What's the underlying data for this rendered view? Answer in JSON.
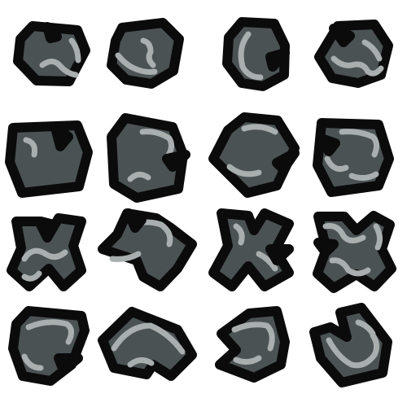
{
  "sprite_sheet": {
    "rows": 4,
    "columns": 4,
    "colors": {
      "background": "#ffffff",
      "outline": "#0b0b0b",
      "body": "#4b5254",
      "highlight": "#a9aeaf"
    },
    "rows_data": [
      {
        "row_name": "small-rocks",
        "tiles": [
          "rock-round-a",
          "rock-round-b",
          "rock-round-c",
          "rock-round-d"
        ]
      },
      {
        "row_name": "medium-rocks",
        "tiles": [
          "rock-hex-a",
          "rock-hex-b",
          "rock-hex-c",
          "rock-hex-d"
        ]
      },
      {
        "row_name": "cross-rocks",
        "tiles": [
          "rock-cross-a",
          "rock-cross-b",
          "rock-cross-c",
          "rock-cross-d"
        ]
      },
      {
        "row_name": "broken-rocks",
        "tiles": [
          "rock-chipped-a",
          "rock-chipped-b",
          "rock-chipped-c",
          "rock-chipped-d"
        ]
      }
    ]
  }
}
